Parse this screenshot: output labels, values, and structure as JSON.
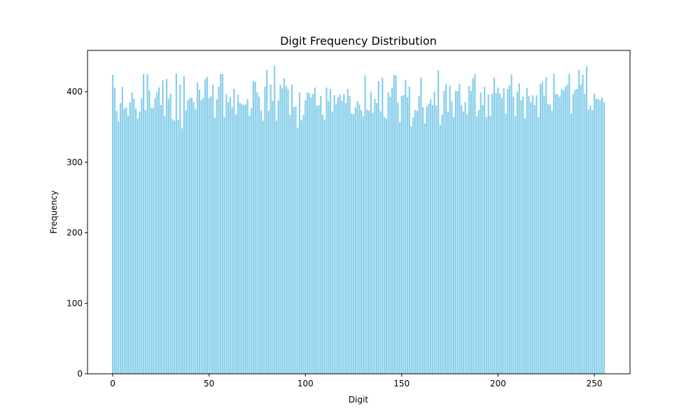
{
  "chart_data": {
    "type": "bar",
    "title": "Digit Frequency Distribution",
    "xlabel": "Digit",
    "ylabel": "Frequency",
    "color": "#87ceeb",
    "x": [
      0,
      1,
      2,
      3,
      4,
      5,
      6,
      7,
      8,
      9,
      10,
      11,
      12,
      13,
      14,
      15,
      16,
      17,
      18,
      19,
      20,
      21,
      22,
      23,
      24,
      25,
      26,
      27,
      28,
      29,
      30,
      31,
      32,
      33,
      34,
      35,
      36,
      37,
      38,
      39,
      40,
      41,
      42,
      43,
      44,
      45,
      46,
      47,
      48,
      49,
      50,
      51,
      52,
      53,
      54,
      55,
      56,
      57,
      58,
      59,
      60,
      61,
      62,
      63,
      64,
      65,
      66,
      67,
      68,
      69,
      70,
      71,
      72,
      73,
      74,
      75,
      76,
      77,
      78,
      79,
      80,
      81,
      82,
      83,
      84,
      85,
      86,
      87,
      88,
      89,
      90,
      91,
      92,
      93,
      94,
      95,
      96,
      97,
      98,
      99,
      100,
      101,
      102,
      103,
      104,
      105,
      106,
      107,
      108,
      109,
      110,
      111,
      112,
      113,
      114,
      115,
      116,
      117,
      118,
      119,
      120,
      121,
      122,
      123,
      124,
      125,
      126,
      127,
      128,
      129,
      130,
      131,
      132,
      133,
      134,
      135,
      136,
      137,
      138,
      139,
      140,
      141,
      142,
      143,
      144,
      145,
      146,
      147,
      148,
      149,
      150,
      151,
      152,
      153,
      154,
      155,
      156,
      157,
      158,
      159,
      160,
      161,
      162,
      163,
      164,
      165,
      166,
      167,
      168,
      169,
      170,
      171,
      172,
      173,
      174,
      175,
      176,
      177,
      178,
      179,
      180,
      181,
      182,
      183,
      184,
      185,
      186,
      187,
      188,
      189,
      190,
      191,
      192,
      193,
      194,
      195,
      196,
      197,
      198,
      199,
      200,
      201,
      202,
      203,
      204,
      205,
      206,
      207,
      208,
      209,
      210,
      211,
      212,
      213,
      214,
      215,
      216,
      217,
      218,
      219,
      220,
      221,
      222,
      223,
      224,
      225,
      226,
      227,
      228,
      229,
      230,
      231,
      232,
      233,
      234,
      235,
      236,
      237,
      238,
      239,
      240,
      241,
      242,
      243,
      244,
      245,
      246,
      247,
      248,
      249,
      250,
      251,
      252,
      253,
      254,
      255
    ],
    "values": [
      424,
      406,
      373,
      358,
      384,
      407,
      376,
      378,
      366,
      385,
      399,
      390,
      376,
      362,
      372,
      391,
      425,
      374,
      425,
      402,
      377,
      377,
      391,
      399,
      406,
      381,
      416,
      365,
      418,
      390,
      397,
      361,
      359,
      426,
      360,
      410,
      348,
      422,
      374,
      388,
      391,
      392,
      385,
      375,
      413,
      403,
      388,
      391,
      418,
      421,
      391,
      394,
      410,
      363,
      389,
      407,
      425,
      425,
      364,
      396,
      385,
      393,
      378,
      404,
      368,
      396,
      384,
      383,
      381,
      382,
      390,
      366,
      377,
      415,
      414,
      399,
      393,
      373,
      359,
      407,
      431,
      373,
      410,
      387,
      437,
      359,
      388,
      410,
      405,
      419,
      408,
      404,
      367,
      410,
      378,
      379,
      349,
      399,
      360,
      367,
      388,
      399,
      398,
      392,
      397,
      406,
      380,
      381,
      394,
      367,
      360,
      406,
      387,
      404,
      372,
      395,
      382,
      392,
      396,
      387,
      397,
      384,
      404,
      394,
      369,
      368,
      378,
      387,
      382,
      374,
      365,
      423,
      375,
      373,
      400,
      370,
      390,
      384,
      415,
      372,
      420,
      364,
      362,
      399,
      393,
      405,
      424,
      423,
      385,
      357,
      394,
      395,
      417,
      392,
      407,
      351,
      364,
      374,
      373,
      394,
      420,
      378,
      355,
      379,
      383,
      389,
      381,
      400,
      380,
      430,
      353,
      367,
      401,
      411,
      372,
      409,
      386,
      364,
      401,
      401,
      411,
      381,
      372,
      385,
      368,
      408,
      401,
      419,
      425,
      365,
      374,
      399,
      381,
      407,
      364,
      396,
      366,
      397,
      420,
      398,
      406,
      397,
      391,
      405,
      369,
      404,
      409,
      424,
      393,
      365,
      400,
      412,
      388,
      393,
      362,
      405,
      394,
      385,
      395,
      381,
      395,
      364,
      411,
      414,
      394,
      421,
      382,
      382,
      373,
      426,
      397,
      396,
      393,
      404,
      402,
      407,
      410,
      425,
      369,
      397,
      403,
      404,
      431,
      410,
      424,
      397,
      436,
      375,
      380,
      374,
      397,
      390,
      389,
      388,
      392,
      385
    ],
    "xlim": [
      -13.1,
      268.5
    ],
    "ylim": [
      0,
      458.6
    ],
    "xticks": [
      0,
      50,
      100,
      150,
      200,
      250
    ],
    "yticks": [
      0,
      100,
      200,
      300,
      400
    ]
  }
}
